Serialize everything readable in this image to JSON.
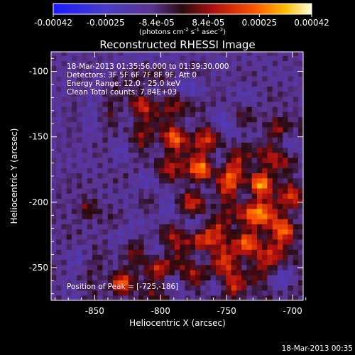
{
  "chart_data": {
    "type": "heatmap",
    "title": "Reconstructed RHESSI Image",
    "xlabel": "Heliocentric X (arcsec)",
    "ylabel": "Heliocentric Y (arcsec)",
    "xlim": [
      -883,
      -692
    ],
    "ylim": [
      -275,
      -85
    ],
    "x_ticks": [
      -850,
      -800,
      -750,
      -700
    ],
    "y_ticks": [
      -100,
      -150,
      -200,
      -250
    ],
    "colorbar": {
      "range": [
        -0.00042,
        0.00042
      ],
      "ticks": [
        -0.00042,
        -0.00025,
        -8.4e-05,
        8.4e-05,
        0.00025,
        0.00042
      ],
      "tick_labels": [
        "-0.00042",
        "-0.00025",
        "-8.4e-05",
        "8.4e-05",
        "0.00025",
        "0.00042"
      ],
      "unit_prefix": "(photons cm",
      "unit_sup1": "-2",
      "unit_mid": " s",
      "unit_sup2": "-1",
      "unit_mid2": " asec",
      "unit_sup3": "-2",
      "unit_suffix": ")"
    },
    "annotations": [
      "18-Mar-2013 01:35:56.000 to 01:39:30.000",
      "Detectors: 3F 5F 6F 7F 8F 9F, Att 0",
      "Energy Range: 12.0 - 25.0 keV",
      "Clean    Total counts: 7.84E+03"
    ],
    "peak_text": "Position of Peak = [-725,-186]",
    "peak": [
      -725,
      -186
    ],
    "emission_sources": [
      {
        "x": -725,
        "y": -186,
        "amp": 0.00042,
        "sigma": 14
      },
      {
        "x": -735,
        "y": -230,
        "amp": 0.00033,
        "sigma": 15
      },
      {
        "x": -705,
        "y": -220,
        "amp": 0.0003,
        "sigma": 14
      },
      {
        "x": -768,
        "y": -175,
        "amp": 0.00034,
        "sigma": 14
      },
      {
        "x": -790,
        "y": -150,
        "amp": 0.0003,
        "sigma": 13
      },
      {
        "x": -770,
        "y": -230,
        "amp": 0.00027,
        "sigma": 13
      },
      {
        "x": -815,
        "y": -125,
        "amp": 0.00024,
        "sigma": 12
      },
      {
        "x": -830,
        "y": -262,
        "amp": 0.00028,
        "sigma": 11
      },
      {
        "x": -800,
        "y": -250,
        "amp": 0.00022,
        "sigma": 12
      },
      {
        "x": -745,
        "y": -265,
        "amp": 0.00024,
        "sigma": 12
      },
      {
        "x": -712,
        "y": -145,
        "amp": 0.00018,
        "sigma": 11
      },
      {
        "x": -855,
        "y": -205,
        "amp": 0.00014,
        "sigma": 10
      }
    ]
  },
  "footer": {
    "timestamp": "18-Mar-2013 00:35"
  }
}
